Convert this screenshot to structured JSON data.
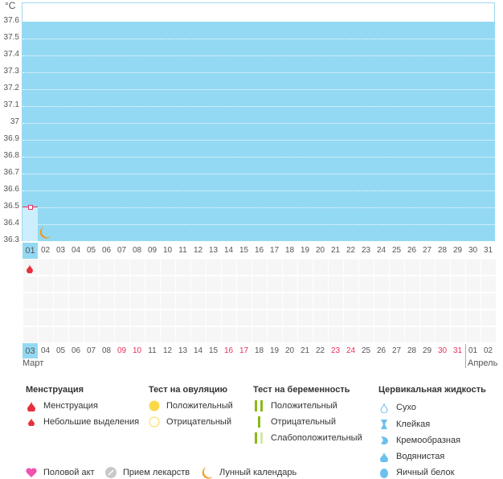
{
  "chart_data": {
    "type": "line",
    "unit": "°C",
    "y_ticks": [
      "37.6",
      "37.5",
      "37.4",
      "37.3",
      "37.2",
      "37.1",
      "37",
      "36.9",
      "36.8",
      "36.7",
      "36.6",
      "36.5",
      "36.4",
      "36.3"
    ],
    "ylim": [
      36.3,
      37.6
    ],
    "x_days": [
      "01",
      "02",
      "03",
      "04",
      "05",
      "06",
      "07",
      "08",
      "09",
      "10",
      "11",
      "12",
      "13",
      "14",
      "15",
      "16",
      "17",
      "18",
      "19",
      "20",
      "21",
      "22",
      "23",
      "24",
      "25",
      "26",
      "27",
      "28",
      "29",
      "30",
      "31"
    ],
    "points": [
      {
        "day": "01",
        "temp": 36.5
      }
    ],
    "moon_day": "02",
    "menstruation_day": "01",
    "selected_day": "01"
  },
  "calendar": {
    "dates": [
      "03",
      "04",
      "05",
      "06",
      "07",
      "08",
      "09",
      "10",
      "11",
      "12",
      "13",
      "14",
      "15",
      "16",
      "17",
      "18",
      "19",
      "20",
      "21",
      "22",
      "23",
      "24",
      "25",
      "26",
      "27",
      "28",
      "29",
      "30",
      "31",
      "01",
      "02"
    ],
    "weekend": [
      false,
      false,
      false,
      false,
      false,
      false,
      true,
      true,
      false,
      false,
      false,
      false,
      false,
      true,
      true,
      false,
      false,
      false,
      false,
      false,
      true,
      true,
      false,
      false,
      false,
      false,
      false,
      true,
      true,
      false,
      false
    ],
    "month_start": "Март",
    "month_end": "Апрель"
  },
  "colors": {
    "weekend": "#e8305c",
    "selected": "#93d9f3",
    "point": "#e8305c"
  },
  "legend": {
    "menstruation": {
      "title": "Менструация",
      "items": [
        "Менструация",
        "Небольшие выделения"
      ]
    },
    "ovulation": {
      "title": "Тест на овуляцию",
      "items": [
        "Положительный",
        "Отрицательный"
      ]
    },
    "pregnancy": {
      "title": "Тест на беременность",
      "items": [
        "Положительный",
        "Отрицательный",
        "Слабоположительный"
      ]
    },
    "cervical": {
      "title": "Цервикальная жидкость",
      "items": [
        "Сухо",
        "Клейкая",
        "Кремообразная",
        "Водянистая",
        "Яичный белок"
      ]
    },
    "other": [
      "Половой акт",
      "Прием лекарств",
      "Лунный календарь"
    ]
  }
}
